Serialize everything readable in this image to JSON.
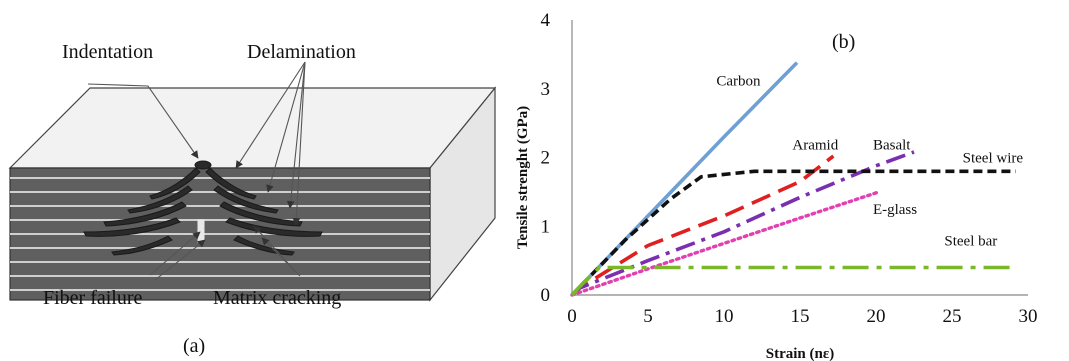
{
  "figure_a": {
    "panel_label": "(a)",
    "labels": {
      "indentation": "Indentation",
      "delamination": "Delamination",
      "fiber_failure": "Fiber failure",
      "matrix_cracking": "Matrix cracking"
    },
    "colors": {
      "top_face": "#f2f2f2",
      "side_face": "#5f5f5f",
      "ply_line": "#cfcfcf",
      "right_face": "#e6e6e6"
    }
  },
  "chart_data": {
    "type": "line",
    "panel_label": "(b)",
    "xlabel": "Strain (nε)",
    "ylabel": "Tensile strenght (GPa)",
    "xlim": [
      0,
      30
    ],
    "ylim": [
      0,
      4
    ],
    "x_ticks": [
      0,
      5,
      10,
      15,
      20,
      25,
      30
    ],
    "y_ticks": [
      0,
      1,
      2,
      3,
      4
    ],
    "grid": false,
    "series": [
      {
        "name": "Carbon",
        "color": "#6fa0d4",
        "style": "solid",
        "x": [
          0,
          5,
          10,
          14.8
        ],
        "y": [
          0,
          1.15,
          2.3,
          3.38
        ],
        "label_at": [
          9.5,
          3.05
        ]
      },
      {
        "name": "Aramid",
        "color": "#e02020",
        "style": "long-dash",
        "x": [
          0,
          0.5,
          5,
          10,
          15,
          17.2
        ],
        "y": [
          0,
          0.1,
          0.72,
          1.15,
          1.65,
          2.02
        ],
        "label_at": [
          14.5,
          2.12
        ]
      },
      {
        "name": "Basalt",
        "color": "#7a2fb0",
        "style": "dash-dot",
        "x": [
          0,
          0.5,
          5,
          10,
          15,
          20,
          22.5
        ],
        "y": [
          0,
          0.1,
          0.5,
          0.92,
          1.42,
          1.88,
          2.08
        ],
        "label_at": [
          19.8,
          2.12
        ]
      },
      {
        "name": "Steel wire",
        "color": "#111111",
        "style": "dashed",
        "x": [
          0,
          3.5,
          6.5,
          8.5,
          12,
          15,
          20,
          25,
          29.2
        ],
        "y": [
          0,
          0.8,
          1.4,
          1.72,
          1.8,
          1.8,
          1.8,
          1.8,
          1.8
        ],
        "label_at": [
          25.7,
          1.93
        ]
      },
      {
        "name": "E-glass",
        "color": "#e040b0",
        "style": "dotted",
        "x": [
          0,
          5,
          10,
          15,
          20.2
        ],
        "y": [
          0,
          0.38,
          0.75,
          1.12,
          1.5
        ],
        "label_at": [
          19.8,
          1.18
        ]
      },
      {
        "name": "Steel bar",
        "color": "#7ab82a",
        "style": "dash-dot-long",
        "x": [
          0,
          0.5,
          1.8,
          5,
          10,
          15,
          20,
          25,
          29.2
        ],
        "y": [
          0,
          0.12,
          0.4,
          0.4,
          0.4,
          0.4,
          0.4,
          0.4,
          0.4
        ],
        "label_at": [
          24.5,
          0.72
        ]
      }
    ]
  }
}
